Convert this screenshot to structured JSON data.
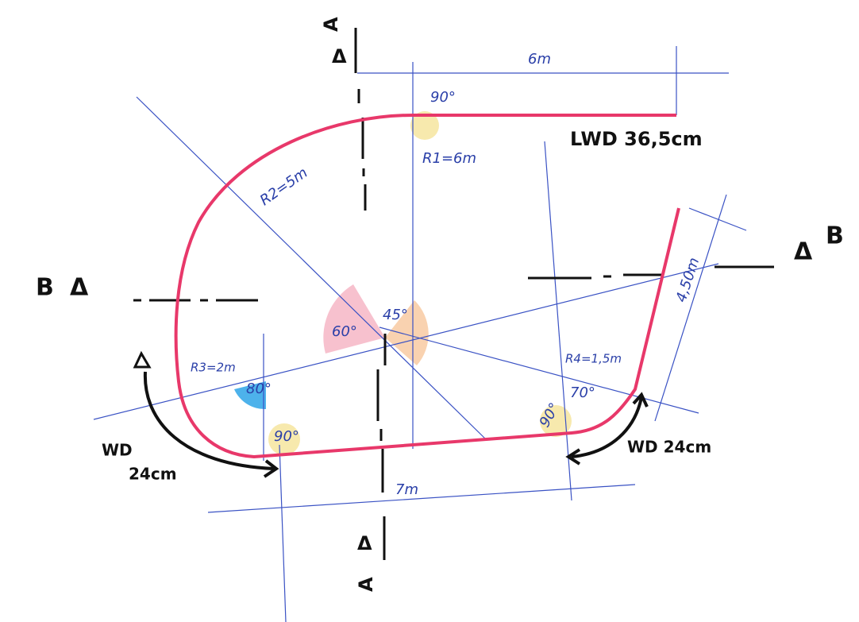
{
  "section_marks": {
    "top": "A",
    "bottom": "A",
    "left": "B",
    "right": "B"
  },
  "dimensions": {
    "top_length": "6m",
    "bottom_length": "7m",
    "side_length": "4,50m"
  },
  "radii": {
    "r1": "R1=6m",
    "r2": "R2=5m",
    "r3": "R3=2m",
    "r4": "R4=1,5m"
  },
  "angles": {
    "top": "90°",
    "center_left": "60°",
    "center_right": "45°",
    "left": "80°",
    "bottom_left": "90°",
    "bottom_right": "90°",
    "right": "70°"
  },
  "walls": {
    "top": "LWD 36,5cm",
    "left_line1": "WD",
    "left_line2": "24cm",
    "right": "WD 24cm"
  }
}
